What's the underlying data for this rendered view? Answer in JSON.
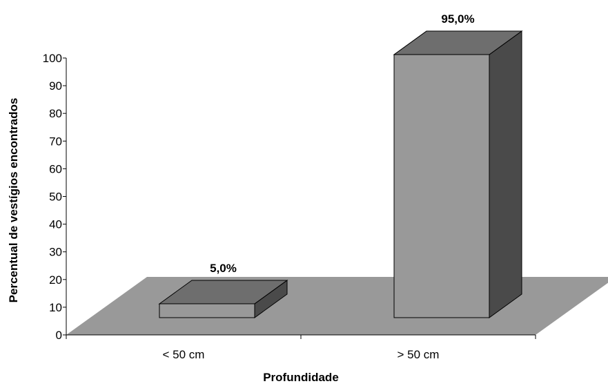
{
  "chart_data": {
    "type": "bar",
    "style": "3d-column",
    "categories": [
      "< 50 cm",
      "> 50 cm"
    ],
    "values": [
      5.0,
      95.0
    ],
    "data_labels": [
      "5,0%",
      "95,0%"
    ],
    "xlabel": "Profundidade",
    "ylabel": "Percentual de vestígios encontrados",
    "ylim": [
      0,
      100
    ],
    "yticks": [
      "0",
      "10",
      "20",
      "30",
      "40",
      "50",
      "60",
      "70",
      "80",
      "90",
      "100"
    ],
    "grid": false,
    "legend": "none"
  },
  "colors": {
    "floor": "#999999",
    "bar_front": "#999999",
    "bar_top": "#6e6e6e",
    "bar_side": "#4a4a4a",
    "outline": "#000000"
  }
}
